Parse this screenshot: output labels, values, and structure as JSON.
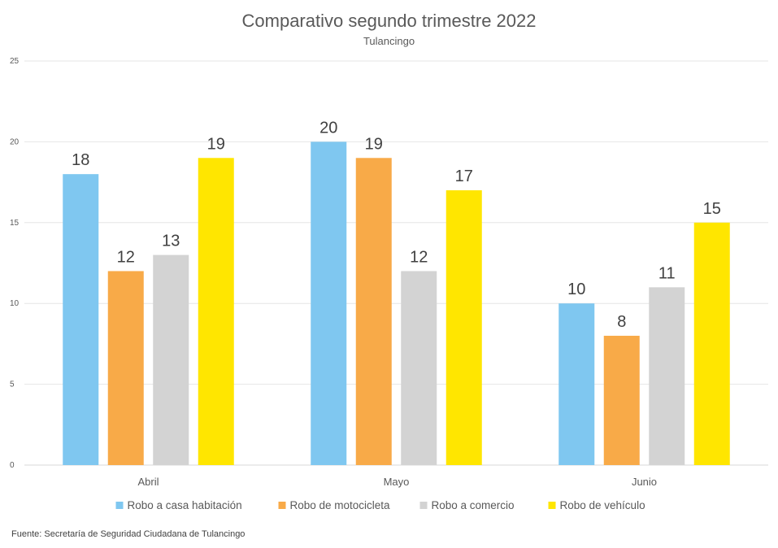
{
  "chart_data": {
    "type": "bar",
    "title": "Comparativo segundo trimestre 2022",
    "subtitle": "Tulancingo",
    "categories": [
      "Abril",
      "Mayo",
      "Junio"
    ],
    "series": [
      {
        "name": "Robo a casa habitación",
        "color": "#7fc7f0",
        "values": [
          18,
          20,
          10
        ]
      },
      {
        "name": "Robo de motocicleta",
        "color": "#f8aa48",
        "values": [
          12,
          19,
          8
        ]
      },
      {
        "name": "Robo a comercio",
        "color": "#d3d3d3",
        "values": [
          13,
          12,
          11
        ]
      },
      {
        "name": "Robo de vehículo",
        "color": "#ffe600",
        "values": [
          19,
          17,
          15
        ]
      }
    ],
    "ylim": [
      0,
      25
    ],
    "yticks": [
      0,
      5,
      10,
      15,
      20,
      25
    ],
    "grid": true,
    "legend": "bottom",
    "data_labels": true
  },
  "source": "Fuente:  Secretaría de Seguridad Ciudadana de Tulancingo"
}
